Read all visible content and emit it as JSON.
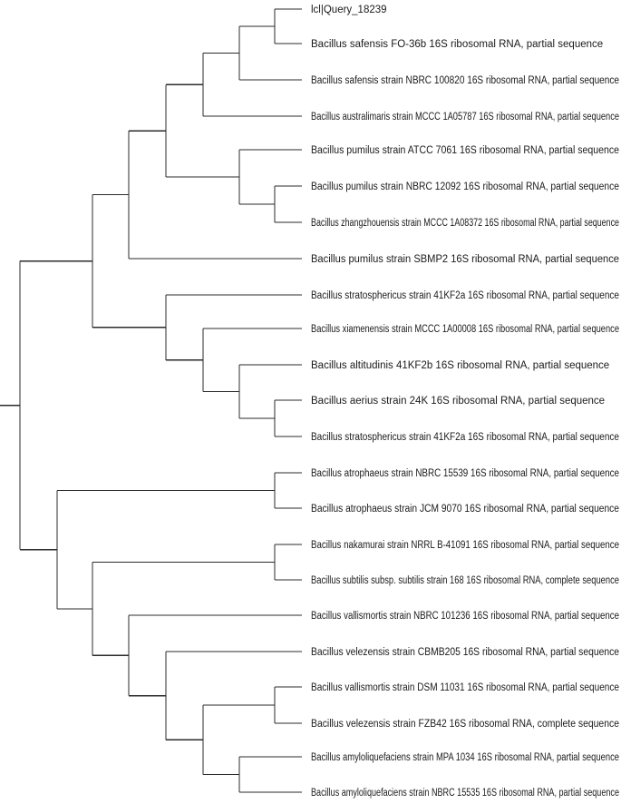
{
  "tree": {
    "leaves": [
      {
        "id": "L1",
        "label": "lcl|Query_18239"
      },
      {
        "id": "L2",
        "label": "Bacillus safensis FO-36b 16S ribosomal RNA, partial sequence"
      },
      {
        "id": "L3",
        "label": "Bacillus safensis strain NBRC 100820 16S ribosomal RNA, partial sequence"
      },
      {
        "id": "L4",
        "label": "Bacillus australimaris strain MCCC 1A05787 16S ribosomal RNA, partial sequence"
      },
      {
        "id": "L5",
        "label": "Bacillus pumilus strain ATCC 7061 16S ribosomal RNA, partial sequence"
      },
      {
        "id": "L6",
        "label": "Bacillus pumilus strain NBRC 12092 16S ribosomal RNA, partial sequence"
      },
      {
        "id": "L7",
        "label": "Bacillus zhangzhouensis strain MCCC 1A08372 16S ribosomal RNA, partial sequence"
      },
      {
        "id": "L8",
        "label": "Bacillus pumilus strain SBMP2 16S ribosomal RNA, partial sequence"
      },
      {
        "id": "L9",
        "label": "Bacillus stratosphericus strain 41KF2a 16S ribosomal RNA, partial sequence"
      },
      {
        "id": "L10",
        "label": "Bacillus xiamenensis strain MCCC 1A00008 16S ribosomal RNA, partial sequence"
      },
      {
        "id": "L11",
        "label": "Bacillus altitudinis 41KF2b 16S ribosomal RNA, partial sequence"
      },
      {
        "id": "L12",
        "label": "Bacillus aerius strain 24K 16S ribosomal RNA, partial sequence"
      },
      {
        "id": "L13",
        "label": "Bacillus stratosphericus strain 41KF2a 16S ribosomal RNA, partial sequence"
      },
      {
        "id": "L14",
        "label": "Bacillus atrophaeus strain NBRC 15539 16S ribosomal RNA, partial sequence"
      },
      {
        "id": "L15",
        "label": "Bacillus atrophaeus strain JCM 9070 16S ribosomal RNA, partial sequence"
      },
      {
        "id": "L16",
        "label": "Bacillus nakamurai strain NRRL B-41091 16S ribosomal RNA, partial sequence"
      },
      {
        "id": "L17",
        "label": "Bacillus subtilis subsp. subtilis strain 168 16S ribosomal RNA, complete sequence"
      },
      {
        "id": "L18",
        "label": "Bacillus vallismortis strain NBRC 101236 16S ribosomal RNA, partial sequence"
      },
      {
        "id": "L19",
        "label": "Bacillus velezensis strain CBMB205 16S ribosomal RNA, partial sequence"
      },
      {
        "id": "L20",
        "label": "Bacillus vallismortis strain DSM 11031 16S ribosomal RNA, partial sequence"
      },
      {
        "id": "L21",
        "label": "Bacillus velezensis strain FZB42 16S ribosomal RNA, complete sequence"
      },
      {
        "id": "L22",
        "label": "Bacillus amyloliquefaciens strain MPA 1034 16S ribosomal RNA, partial sequence"
      },
      {
        "id": "L23",
        "label": "Bacillus amyloliquefaciens strain NBRC 15535 16S ribosomal RNA, partial sequence"
      }
    ],
    "topology": [
      "root",
      [
        [
          "n1",
          [
            [
              "n2",
              [
                [
                  "n3",
                  [
                    [
                      "n4",
                      [
                        [
                          "n5",
                          [
                            "L1",
                            "L2"
                          ]
                        ],
                        "L3"
                      ]
                    ],
                    "L4"
                  ]
                ],
                [
                  "n6",
                  [
                    "L5",
                    [
                      "n7",
                      [
                        "L6",
                        "L7"
                      ]
                    ]
                  ]
                ]
              ]
            ],
            "L8"
          ]
        ],
        [
          "n8",
          [
            "L9",
            [
              "n9",
              [
                "L10",
                [
                  "n10",
                  [
                    "L11",
                    [
                      "n11",
                      [
                        "L12",
                        "L13"
                      ]
                    ]
                  ]
                ]
              ]
            ]
          ]
        ]
      ]
    ],
    "topology_b": [
      "n12",
      [
        [
          "n13",
          [
            "L14",
            "L15"
          ]
        ],
        [
          "n14",
          [
            [
              "n15",
              [
                "L16",
                "L17"
              ]
            ],
            [
              "n16",
              [
                "L18",
                [
                  "n17",
                  [
                    "L19",
                    [
                      "n18",
                      [
                        [
                          "n19",
                          [
                            "L20",
                            "L21"
                          ]
                        ],
                        [
                          "n20",
                          [
                            "L22",
                            "L23"
                          ]
                        ]
                      ]
                    ]
                  ]
                ]
              ]
            ]
          ]
        ]
      ]
    ]
  }
}
